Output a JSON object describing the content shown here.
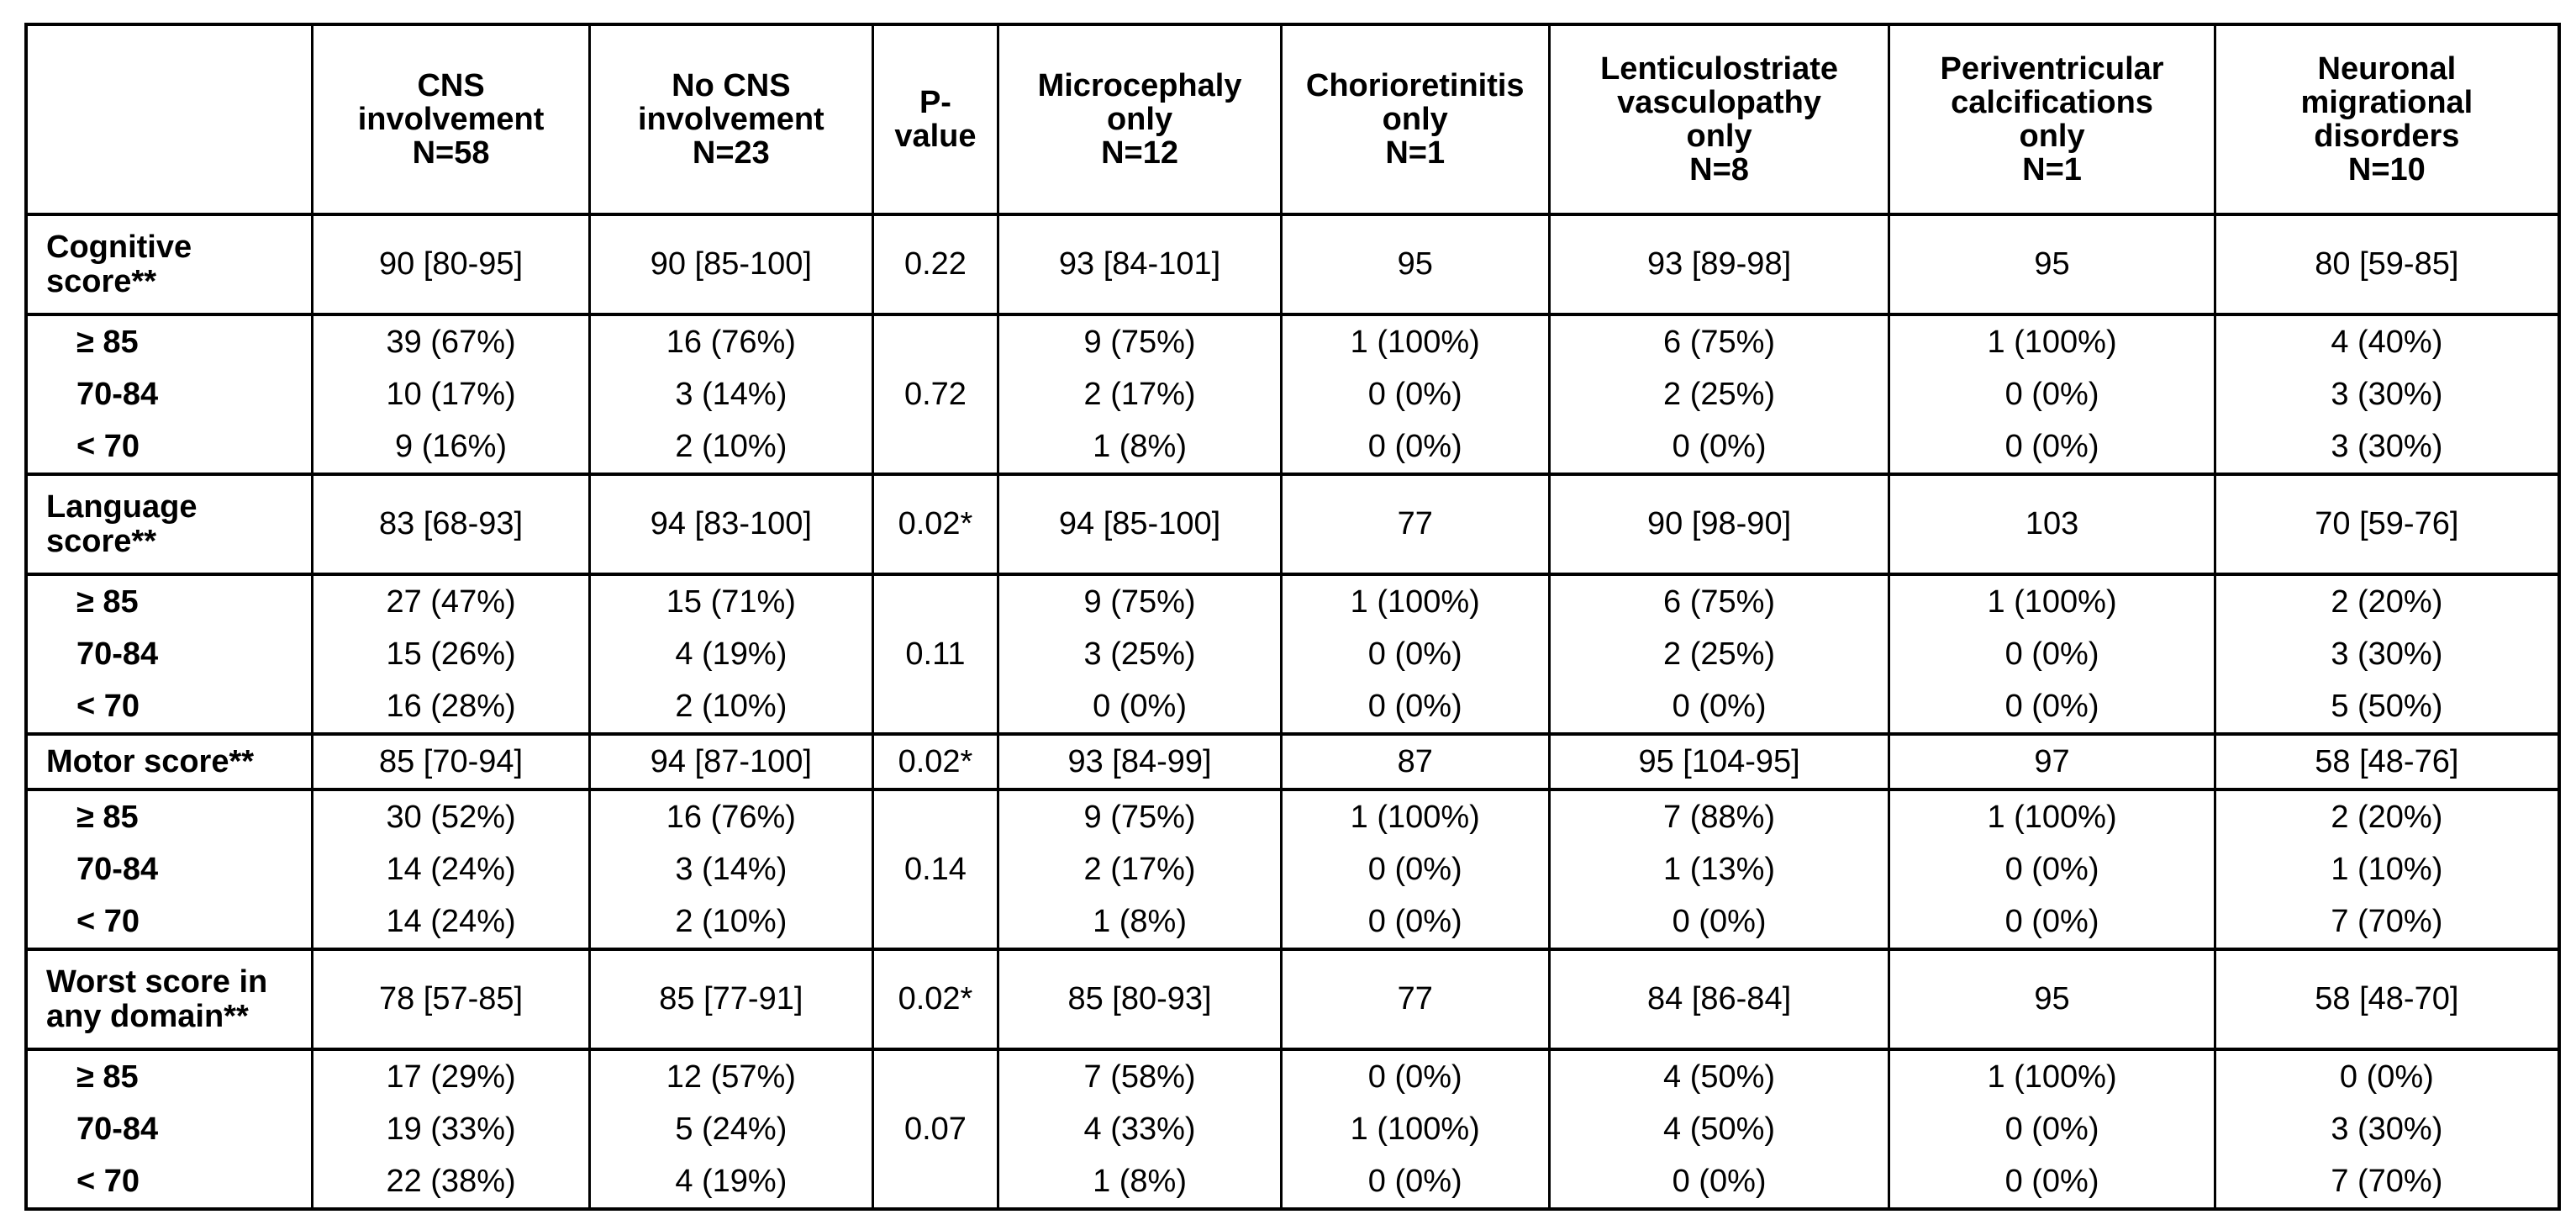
{
  "columns": [
    {
      "lines": [
        ""
      ]
    },
    {
      "lines": [
        "CNS",
        "involvement",
        "N=58"
      ]
    },
    {
      "lines": [
        "No CNS",
        "involvement",
        "N=23"
      ]
    },
    {
      "lines": [
        "P-",
        "value"
      ]
    },
    {
      "lines": [
        "Microcephaly",
        "only",
        "N=12"
      ]
    },
    {
      "lines": [
        "Chorioretinitis",
        "only",
        "N=1"
      ]
    },
    {
      "lines": [
        "Lenticulostriate",
        "vasculopathy",
        "only",
        "N=8"
      ]
    },
    {
      "lines": [
        "Periventricular",
        "calcifications",
        "only",
        "N=1"
      ]
    },
    {
      "lines": [
        "Neuronal",
        "migrational",
        "disorders",
        "N=10"
      ]
    }
  ],
  "groups": [
    {
      "label": "Cognitive score**",
      "score": [
        "90 [80-95]",
        "90 [85-100]",
        "0.22",
        "93 [84-101]",
        "95",
        "93 [89-98]",
        "95",
        "80 [59-85]"
      ],
      "band_pvalue": "0.72",
      "bands": [
        {
          "label": "≥ 85",
          "values": [
            "39 (67%)",
            "16 (76%)",
            "9 (75%)",
            "1 (100%)",
            "6 (75%)",
            "1 (100%)",
            "4 (40%)"
          ]
        },
        {
          "label": "70-84",
          "values": [
            "10 (17%)",
            "3 (14%)",
            "2 (17%)",
            "0 (0%)",
            "2 (25%)",
            "0 (0%)",
            "3 (30%)"
          ]
        },
        {
          "label": "< 70",
          "values": [
            "9 (16%)",
            "2 (10%)",
            "1 (8%)",
            "0 (0%)",
            "0 (0%)",
            "0 (0%)",
            "3 (30%)"
          ]
        }
      ]
    },
    {
      "label": "Language score**",
      "score": [
        "83 [68-93]",
        "94 [83-100]",
        "0.02*",
        "94 [85-100]",
        "77",
        "90 [98-90]",
        "103",
        "70 [59-76]"
      ],
      "band_pvalue": "0.11",
      "bands": [
        {
          "label": "≥ 85",
          "values": [
            "27 (47%)",
            "15 (71%)",
            "9 (75%)",
            "1 (100%)",
            "6 (75%)",
            "1 (100%)",
            "2 (20%)"
          ]
        },
        {
          "label": "70-84",
          "values": [
            "15 (26%)",
            "4 (19%)",
            "3 (25%)",
            "0 (0%)",
            "2 (25%)",
            "0 (0%)",
            "3 (30%)"
          ]
        },
        {
          "label": "< 70",
          "values": [
            "16 (28%)",
            "2 (10%)",
            "0 (0%)",
            "0 (0%)",
            "0 (0%)",
            "0 (0%)",
            "5 (50%)"
          ]
        }
      ]
    },
    {
      "label": "Motor score**",
      "score": [
        "85 [70-94]",
        "94 [87-100]",
        "0.02*",
        "93 [84-99]",
        "87",
        "95 [104-95]",
        "97",
        "58 [48-76]"
      ],
      "band_pvalue": "0.14",
      "bands": [
        {
          "label": "≥ 85",
          "values": [
            "30 (52%)",
            "16 (76%)",
            "9 (75%)",
            "1 (100%)",
            "7 (88%)",
            "1 (100%)",
            "2 (20%)"
          ]
        },
        {
          "label": "70-84",
          "values": [
            "14 (24%)",
            "3 (14%)",
            "2 (17%)",
            "0 (0%)",
            "1 (13%)",
            "0 (0%)",
            "1 (10%)"
          ]
        },
        {
          "label": "< 70",
          "values": [
            "14 (24%)",
            "2 (10%)",
            "1 (8%)",
            "0 (0%)",
            "0 (0%)",
            "0 (0%)",
            "7 (70%)"
          ]
        }
      ]
    },
    {
      "label": "Worst score in any domain**",
      "score": [
        "78 [57-85]",
        "85 [77-91]",
        "0.02*",
        "85 [80-93]",
        "77",
        "84 [86-84]",
        "95",
        "58 [48-70]"
      ],
      "band_pvalue": "0.07",
      "bands": [
        {
          "label": "≥ 85",
          "values": [
            "17 (29%)",
            "12 (57%)",
            "7 (58%)",
            "0 (0%)",
            "4 (50%)",
            "1 (100%)",
            "0 (0%)"
          ]
        },
        {
          "label": "70-84",
          "values": [
            "19 (33%)",
            "5 (24%)",
            "4 (33%)",
            "1 (100%)",
            "4 (50%)",
            "0 (0%)",
            "3 (30%)"
          ]
        },
        {
          "label": "< 70",
          "values": [
            "22 (38%)",
            "4 (19%)",
            "1 (8%)",
            "0 (0%)",
            "0 (0%)",
            "0 (0%)",
            "7 (70%)"
          ]
        }
      ]
    }
  ]
}
